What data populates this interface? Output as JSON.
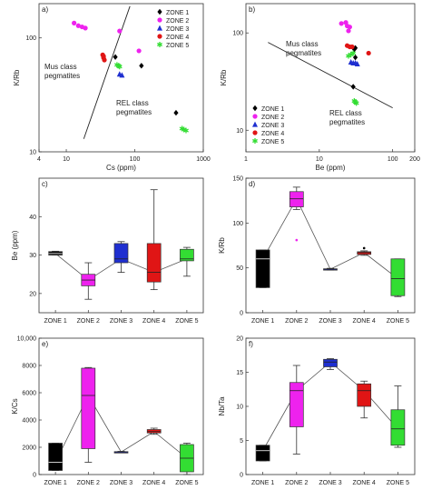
{
  "chart_data": [
    {
      "panel": "a)",
      "type": "scatter",
      "xscale": "log",
      "yscale": "log",
      "xlabel": "Cs (ppm)",
      "ylabel": "K/Rb",
      "xlim": [
        4,
        1000
      ],
      "ylim": [
        10,
        200
      ],
      "xticks": [
        4,
        10,
        100,
        1000
      ],
      "yticks": [
        10,
        100
      ],
      "legend_position": "top-right",
      "region_labels": [
        "Mus class\npegmatites",
        "REL class\npegmatites"
      ],
      "line": [
        [
          18,
          13
        ],
        [
          85,
          190
        ]
      ],
      "series": [
        {
          "name": "ZONE 1",
          "color": "#000000",
          "marker": "diamond",
          "x": [
            52,
            125,
            400
          ],
          "y": [
            68,
            57,
            22
          ]
        },
        {
          "name": "ZONE 2",
          "color": "#ee22ee",
          "marker": "circle",
          "x": [
            13,
            15,
            17,
            19,
            60,
            115
          ],
          "y": [
            135,
            128,
            125,
            122,
            115,
            77
          ]
        },
        {
          "name": "ZONE 3",
          "color": "#1f2fd0",
          "marker": "triangle",
          "x": [
            60,
            65
          ],
          "y": [
            48,
            47
          ]
        },
        {
          "name": "ZONE 4",
          "color": "#e01515",
          "marker": "circle",
          "x": [
            34,
            35,
            36,
            35
          ],
          "y": [
            71,
            67,
            64,
            69
          ]
        },
        {
          "name": "ZONE 5",
          "color": "#33dd33",
          "marker": "star",
          "x": [
            55,
            58,
            60,
            490,
            520,
            560
          ],
          "y": [
            58,
            57,
            56,
            16,
            15.7,
            15.4
          ]
        }
      ]
    },
    {
      "panel": "b)",
      "type": "scatter",
      "xscale": "log",
      "yscale": "log",
      "xlabel": "Be (ppm)",
      "ylabel": "K/Rb",
      "xlim": [
        1,
        200
      ],
      "ylim": [
        6,
        200
      ],
      "xticks": [
        1,
        10,
        100,
        200
      ],
      "yticks": [
        10,
        100
      ],
      "legend_position": "bottom-left",
      "region_labels": [
        "Mus class\npegmatites",
        "REL class\npegmatites"
      ],
      "line": [
        [
          2,
          80
        ],
        [
          100,
          17
        ]
      ],
      "series": [
        {
          "name": "ZONE 1",
          "color": "#000000",
          "marker": "diamond",
          "x": [
            31,
            30,
            31,
            29
          ],
          "y": [
            70,
            68,
            56,
            28
          ]
        },
        {
          "name": "ZONE 2",
          "color": "#ee22ee",
          "marker": "circle",
          "x": [
            20,
            23,
            24,
            26,
            25
          ],
          "y": [
            125,
            128,
            118,
            115,
            105
          ]
        },
        {
          "name": "ZONE 3",
          "color": "#1f2fd0",
          "marker": "triangle",
          "x": [
            27,
            29,
            31,
            33
          ],
          "y": [
            50,
            49,
            49,
            48
          ]
        },
        {
          "name": "ZONE 4",
          "color": "#e01515",
          "marker": "circle",
          "x": [
            24,
            26,
            28,
            47
          ],
          "y": [
            74,
            72,
            72,
            62
          ]
        },
        {
          "name": "ZONE 5",
          "color": "#33dd33",
          "marker": "star",
          "x": [
            25,
            27,
            29,
            30,
            31,
            32
          ],
          "y": [
            58,
            60,
            62,
            20,
            19.5,
            19
          ]
        }
      ]
    },
    {
      "panel": "c)",
      "type": "box",
      "ylabel": "Be (ppm)",
      "ylim": [
        15,
        50
      ],
      "yticks": [
        20,
        30,
        40
      ],
      "categories": [
        "ZONE 1",
        "ZONE 2",
        "ZONE 3",
        "ZONE 4",
        "ZONE 5"
      ],
      "colors": [
        "#000000",
        "#ee22ee",
        "#1f2fd0",
        "#e01515",
        "#33dd33"
      ],
      "boxes": [
        {
          "min": 30,
          "q1": 30,
          "median": 30.4,
          "q3": 30.9,
          "max": 31
        },
        {
          "min": 18.5,
          "q1": 22,
          "median": 23.5,
          "q3": 25,
          "max": 28
        },
        {
          "min": 25.5,
          "q1": 28,
          "median": 29,
          "q3": 33,
          "max": 33.5
        },
        {
          "min": 21,
          "q1": 23,
          "median": 25.5,
          "q3": 33,
          "max": 47
        },
        {
          "min": 24.5,
          "q1": 28.5,
          "median": 29,
          "q3": 31.5,
          "max": 32
        }
      ],
      "outliers": [
        [],
        [],
        [],
        [],
        []
      ],
      "connect": [
        30.4,
        23.5,
        29,
        25.5,
        29
      ]
    },
    {
      "panel": "d)",
      "type": "box",
      "ylabel": "K/Rb",
      "ylim": [
        0,
        150
      ],
      "yticks": [
        0,
        50,
        100,
        150
      ],
      "categories": [
        "ZONE 1",
        "ZONE 2",
        "ZONE 3",
        "ZONE 4",
        "ZONE 5"
      ],
      "colors": [
        "#000000",
        "#ee22ee",
        "#1f2fd0",
        "#e01515",
        "#33dd33"
      ],
      "boxes": [
        {
          "min": 28,
          "q1": 28,
          "median": 60,
          "q3": 70,
          "max": 70
        },
        {
          "min": 115,
          "q1": 118,
          "median": 127,
          "q3": 135,
          "max": 140
        },
        {
          "min": 47.5,
          "q1": 48,
          "median": 48.5,
          "q3": 49,
          "max": 49.5
        },
        {
          "min": 64,
          "q1": 65,
          "median": 67,
          "q3": 68,
          "max": 69
        },
        {
          "min": 18,
          "q1": 19,
          "median": 38,
          "q3": 60,
          "max": 60
        }
      ],
      "outliers": [
        [],
        [
          81
        ],
        [],
        [
          72
        ],
        []
      ],
      "connect": [
        60,
        127,
        48.5,
        67,
        38
      ]
    },
    {
      "panel": "e)",
      "type": "box",
      "ylabel": "K/Cs",
      "ylim": [
        0,
        10000
      ],
      "yticks": [
        0,
        2000,
        4000,
        6000,
        8000,
        10000
      ],
      "ytick_labels": [
        "0",
        "2000",
        "4000",
        "6000",
        "8000",
        "10,000"
      ],
      "categories": [
        "ZONE 1",
        "ZONE 2",
        "ZONE 3",
        "ZONE 4",
        "ZONE 5"
      ],
      "colors": [
        "#000000",
        "#ee22ee",
        "#1f2fd0",
        "#e01515",
        "#33dd33"
      ],
      "boxes": [
        {
          "min": 300,
          "q1": 300,
          "median": 900,
          "q3": 2300,
          "max": 2300
        },
        {
          "min": 900,
          "q1": 1900,
          "median": 5800,
          "q3": 7800,
          "max": 7850
        },
        {
          "min": 1600,
          "q1": 1620,
          "median": 1650,
          "q3": 1680,
          "max": 1700
        },
        {
          "min": 2950,
          "q1": 3050,
          "median": 3150,
          "q3": 3300,
          "max": 3400
        },
        {
          "min": 0,
          "q1": 200,
          "median": 1200,
          "q3": 2200,
          "max": 2300
        }
      ],
      "outliers": [
        [],
        [],
        [],
        [],
        []
      ],
      "connect": [
        900,
        5800,
        1650,
        3150,
        1200
      ]
    },
    {
      "panel": "f)",
      "type": "box",
      "ylabel": "Nb/Ta",
      "ylim": [
        0,
        20
      ],
      "yticks": [
        0,
        5,
        10,
        15,
        20
      ],
      "categories": [
        "ZONE 1",
        "ZONE 2",
        "ZONE 3",
        "ZONE 4",
        "ZONE 5"
      ],
      "colors": [
        "#000000",
        "#ee22ee",
        "#1f2fd0",
        "#e01515",
        "#33dd33"
      ],
      "boxes": [
        {
          "min": 2,
          "q1": 2,
          "median": 3.5,
          "q3": 4.3,
          "max": 4.3
        },
        {
          "min": 3,
          "q1": 7,
          "median": 12.3,
          "q3": 13.5,
          "max": 16
        },
        {
          "min": 15.4,
          "q1": 15.8,
          "median": 16.5,
          "q3": 16.9,
          "max": 17
        },
        {
          "min": 8.3,
          "q1": 10,
          "median": 12.3,
          "q3": 13.3,
          "max": 13.7
        },
        {
          "min": 4,
          "q1": 4.3,
          "median": 6.7,
          "q3": 9.5,
          "max": 13
        }
      ],
      "outliers": [
        [],
        [],
        [],
        [],
        []
      ],
      "connect": [
        3.5,
        12.3,
        16.5,
        12.3,
        6.7
      ]
    }
  ]
}
